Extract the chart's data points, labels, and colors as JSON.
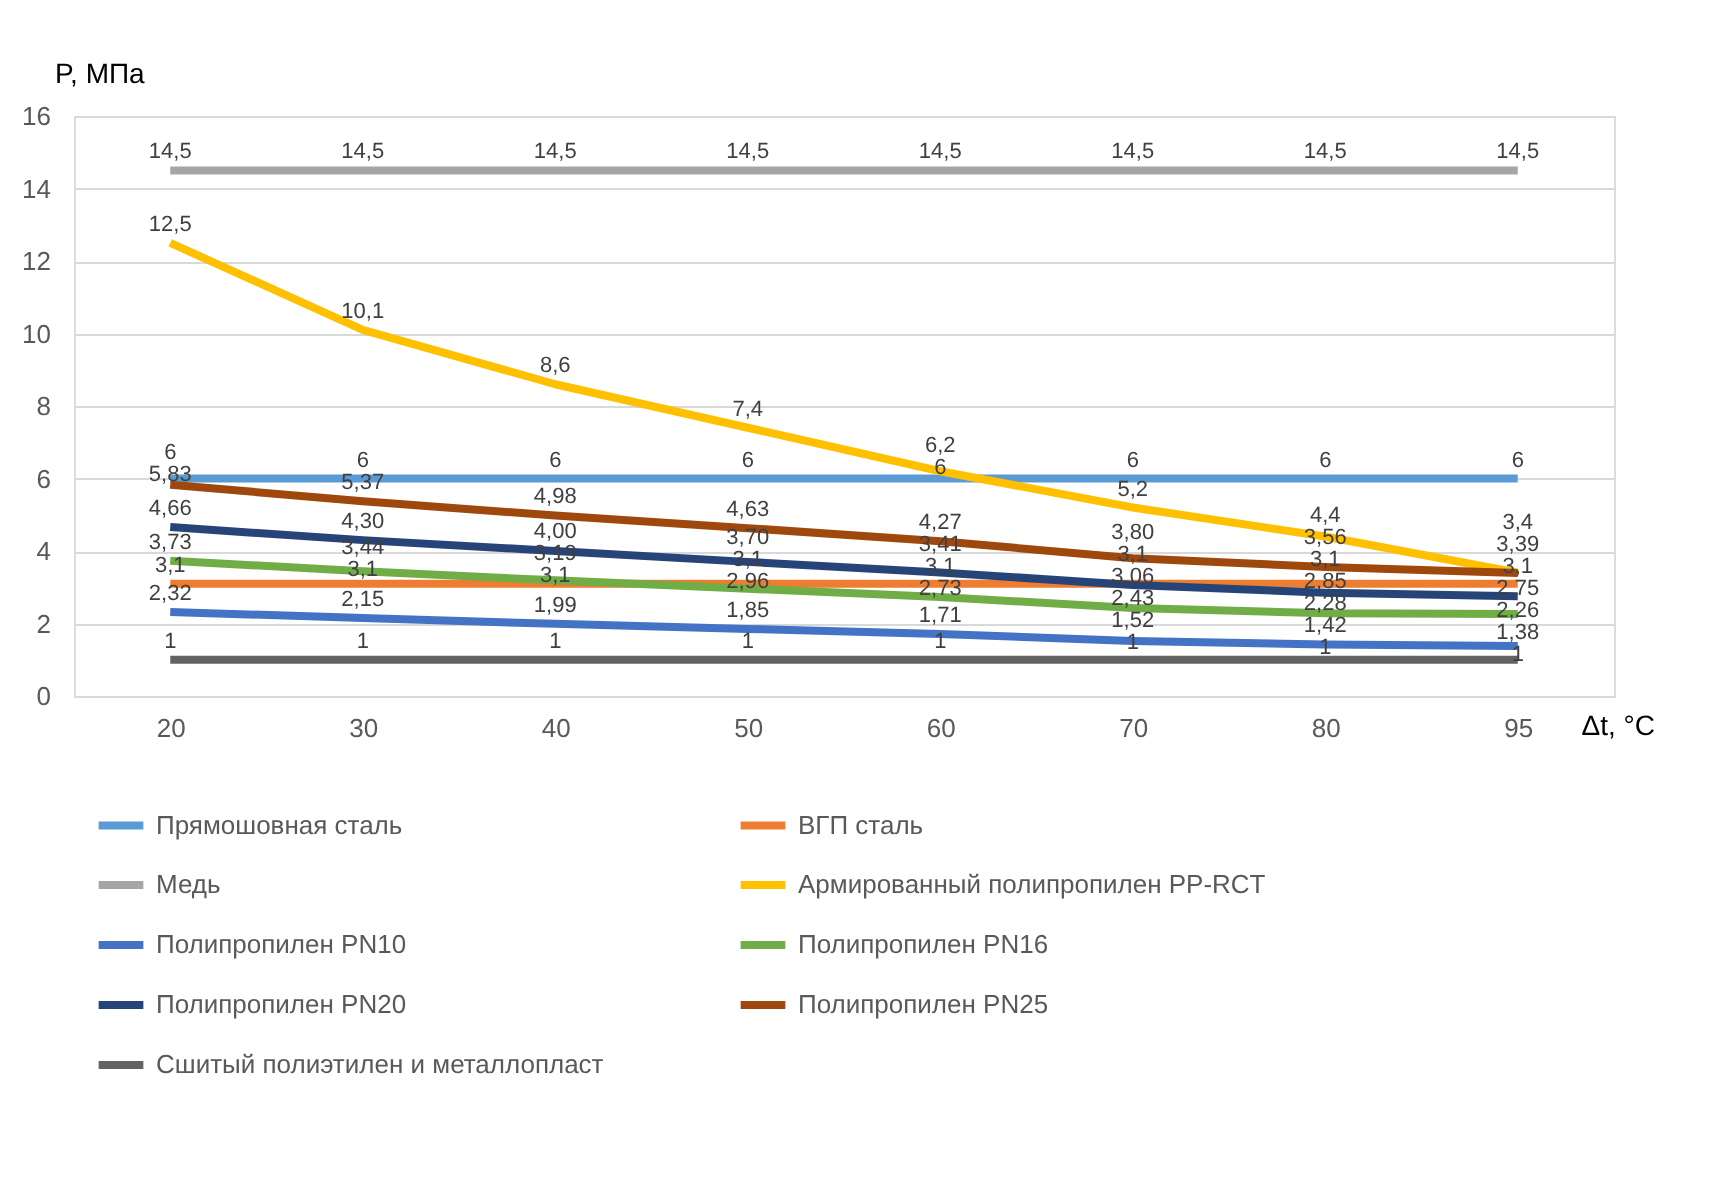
{
  "chart_data": {
    "type": "line",
    "xlabel": "Δt, °C",
    "ylabel": "P, МПа",
    "categories": [
      "20",
      "30",
      "40",
      "50",
      "60",
      "70",
      "80",
      "95"
    ],
    "ylim": [
      0,
      16
    ],
    "yticks": [
      0,
      2,
      4,
      6,
      8,
      10,
      12,
      14,
      16
    ],
    "grid": "y",
    "legend": "bottom",
    "marker": "none",
    "line_style": "solid",
    "series": [
      {
        "name": "Прямошовная сталь",
        "color": "#5b9bd5",
        "values": [
          6,
          6,
          6,
          6,
          6,
          6,
          6,
          6
        ],
        "value_labels": [
          "6",
          "6",
          "6",
          "6",
          "6",
          "6",
          "6",
          "6"
        ]
      },
      {
        "name": "ВГП сталь",
        "color": "#ed7d31",
        "values": [
          3.1,
          3.1,
          3.1,
          3.1,
          3.1,
          3.1,
          3.1,
          3.1
        ],
        "value_labels": [
          "3,1",
          "3,1",
          "3,1",
          "3,1",
          "3,1",
          "3,1",
          "3,1",
          "3,1"
        ]
      },
      {
        "name": "Медь",
        "color": "#a5a5a5",
        "values": [
          14.5,
          14.5,
          14.5,
          14.5,
          14.5,
          14.5,
          14.5,
          14.5
        ],
        "value_labels": [
          "14,5",
          "14,5",
          "14,5",
          "14,5",
          "14,5",
          "14,5",
          "14,5",
          "14,5"
        ]
      },
      {
        "name": "Армированный полипропилен PP-RCT",
        "color": "#ffc000",
        "values": [
          12.5,
          10.1,
          8.6,
          7.4,
          6.2,
          5.2,
          4.4,
          3.4
        ],
        "value_labels": [
          "12,5",
          "10,1",
          "8,6",
          "7,4",
          "6,2",
          "5,2",
          "4,4",
          "3,4"
        ]
      },
      {
        "name": "Полипропилен PN10",
        "color": "#4472c4",
        "values": [
          2.32,
          2.15,
          1.99,
          1.85,
          1.71,
          1.52,
          1.42,
          1.38
        ],
        "value_labels": [
          "2,32",
          "2,15",
          "1,99",
          "1,85",
          "1,71",
          "1,52",
          "1,42",
          "1,38"
        ]
      },
      {
        "name": "Полипропилен PN16",
        "color": "#70ad47",
        "values": [
          3.73,
          3.44,
          3.19,
          2.96,
          2.73,
          2.43,
          2.28,
          2.26
        ],
        "value_labels": [
          "3,73",
          "3,44",
          "3,19",
          "2,96",
          "2,73",
          "2,43",
          "2,28",
          "2,26"
        ]
      },
      {
        "name": "Полипропилен PN20",
        "color": "#264478",
        "values": [
          4.66,
          4.3,
          4.0,
          3.7,
          3.41,
          3.06,
          2.85,
          2.75
        ],
        "value_labels": [
          "4,66",
          "4,30",
          "4,00",
          "3,70",
          "3,41",
          "3,06",
          "2,85",
          "2,75"
        ]
      },
      {
        "name": "Полипропилен PN25",
        "color": "#9e480e",
        "values": [
          5.83,
          5.37,
          4.98,
          4.63,
          4.27,
          3.8,
          3.56,
          3.39
        ],
        "value_labels": [
          "5,83",
          "5,37",
          "4,98",
          "4,63",
          "4,27",
          "3,80",
          "3,56",
          "3,39"
        ]
      },
      {
        "name": "Сшитый полиэтилен и металлопласт",
        "color": "#636363",
        "values": [
          1,
          1,
          1,
          1,
          1,
          1,
          1,
          1
        ],
        "value_labels": [
          "1",
          "1",
          "1",
          "1",
          "1",
          "1",
          "1",
          "1"
        ]
      }
    ]
  }
}
